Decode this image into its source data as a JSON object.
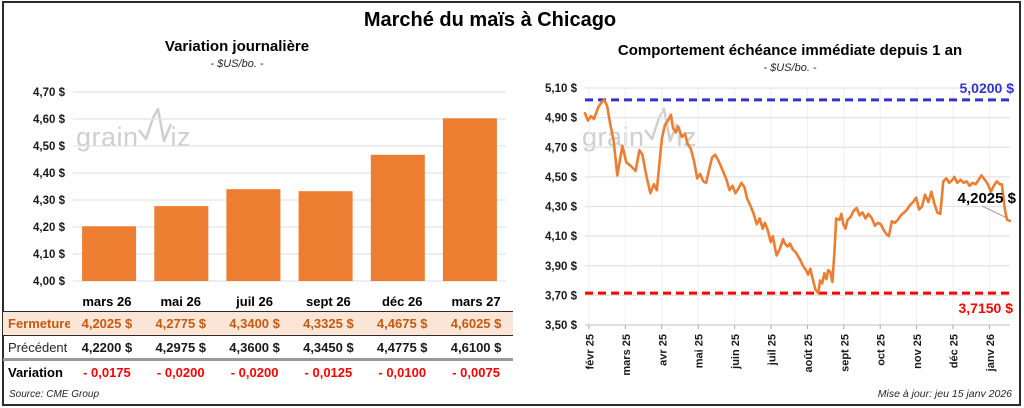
{
  "page": {
    "title": "Marché du maïs à Chicago",
    "source": "Source: CME Group",
    "updated": "Mise à jour: jeu 15 janv 2026",
    "watermark": {
      "part1": "grain",
      "part2": "iz"
    }
  },
  "colors": {
    "orange": "#ED7D31",
    "peach_row": "#FBE5D6",
    "fermeture_text": "#C55A11",
    "variation_red": "#FF0000",
    "max_blue": "#3333CC",
    "grid": "#E3E3E3"
  },
  "table": {
    "columns": [
      "mars 26",
      "mai 26",
      "juil 26",
      "sept 26",
      "déc 26",
      "mars 27"
    ],
    "rows": [
      {
        "key": "fermeture",
        "label": "Fermeture",
        "values": [
          "4,2025 $",
          "4,2775 $",
          "4,3400 $",
          "4,3325 $",
          "4,4675 $",
          "4,6025 $"
        ]
      },
      {
        "key": "precedent",
        "label": "Précédent",
        "values": [
          "4,2200 $",
          "4,2975 $",
          "4,3600 $",
          "4,3450 $",
          "4,4775 $",
          "4,6100 $"
        ]
      },
      {
        "key": "variation",
        "label": "Variation",
        "values": [
          "- 0,0175",
          "- 0,0200",
          "- 0,0200",
          "- 0,0125",
          "- 0,0100",
          "- 0,0075"
        ]
      }
    ]
  },
  "chart_data": [
    {
      "type": "bar",
      "title": "Variation journalière",
      "subtitle": "- $US/bo. -",
      "categories": [
        "mars 26",
        "mai 26",
        "juil 26",
        "sept 26",
        "déc 26",
        "mars 27"
      ],
      "values": [
        4.2025,
        4.2775,
        4.34,
        4.3325,
        4.4675,
        4.6025
      ],
      "ylim": [
        4.0,
        4.7
      ],
      "ytick_step": 0.1,
      "y_tick_labels": [
        "4,70 $",
        "4,60 $",
        "4,50 $",
        "4,40 $",
        "4,30 $",
        "4,20 $",
        "4,10 $",
        "4,00 $"
      ],
      "grid": true,
      "bar_color": "#ED7D31"
    },
    {
      "type": "line",
      "title": "Comportement échéance immédiate depuis 1 an",
      "subtitle": "- $US/bo. -",
      "x_ticks": [
        "févr 25",
        "mars 25",
        "avr 25",
        "mai 25",
        "juin 25",
        "juil 25",
        "août 25",
        "sept 25",
        "oct 25",
        "nov 25",
        "déc 25",
        "janv 26"
      ],
      "ylim": [
        3.5,
        5.1
      ],
      "ytick_step": 0.2,
      "y_tick_labels": [
        "5,10 $",
        "4,90 $",
        "4,70 $",
        "4,50 $",
        "4,30 $",
        "4,10 $",
        "3,90 $",
        "3,70 $",
        "3,50 $"
      ],
      "grid": true,
      "line_color": "#ED7D31",
      "max_line": {
        "value": 5.02,
        "label": "5,0200 $",
        "color": "#3333CC"
      },
      "min_line": {
        "value": 3.715,
        "label": "3,7150 $",
        "color": "#FF0000"
      },
      "last_value": 4.2025,
      "last_label": "4,2025 $",
      "points": [
        [
          0,
          4.93
        ],
        [
          0.007,
          4.88
        ],
        [
          0.014,
          4.91
        ],
        [
          0.021,
          4.89
        ],
        [
          0.031,
          4.97
        ],
        [
          0.038,
          5.0
        ],
        [
          0.045,
          5.02
        ],
        [
          0.052,
          4.98
        ],
        [
          0.059,
          4.86
        ],
        [
          0.067,
          4.75
        ],
        [
          0.076,
          4.51
        ],
        [
          0.088,
          4.71
        ],
        [
          0.097,
          4.6
        ],
        [
          0.109,
          4.57
        ],
        [
          0.119,
          4.54
        ],
        [
          0.128,
          4.68
        ],
        [
          0.135,
          4.65
        ],
        [
          0.145,
          4.5
        ],
        [
          0.154,
          4.39
        ],
        [
          0.162,
          4.45
        ],
        [
          0.169,
          4.41
        ],
        [
          0.181,
          4.76
        ],
        [
          0.188,
          4.85
        ],
        [
          0.195,
          4.88
        ],
        [
          0.202,
          4.92
        ],
        [
          0.207,
          4.83
        ],
        [
          0.214,
          4.8
        ],
        [
          0.219,
          4.84
        ],
        [
          0.228,
          4.77
        ],
        [
          0.235,
          4.79
        ],
        [
          0.242,
          4.72
        ],
        [
          0.249,
          4.69
        ],
        [
          0.257,
          4.6
        ],
        [
          0.264,
          4.49
        ],
        [
          0.271,
          4.52
        ],
        [
          0.278,
          4.47
        ],
        [
          0.285,
          4.46
        ],
        [
          0.292,
          4.55
        ],
        [
          0.299,
          4.63
        ],
        [
          0.306,
          4.65
        ],
        [
          0.314,
          4.61
        ],
        [
          0.323,
          4.55
        ],
        [
          0.333,
          4.48
        ],
        [
          0.34,
          4.41
        ],
        [
          0.347,
          4.44
        ],
        [
          0.354,
          4.39
        ],
        [
          0.361,
          4.42
        ],
        [
          0.368,
          4.46
        ],
        [
          0.375,
          4.43
        ],
        [
          0.382,
          4.35
        ],
        [
          0.39,
          4.3
        ],
        [
          0.397,
          4.25
        ],
        [
          0.404,
          4.18
        ],
        [
          0.411,
          4.22
        ],
        [
          0.418,
          4.15
        ],
        [
          0.423,
          4.19
        ],
        [
          0.43,
          4.14
        ],
        [
          0.437,
          4.06
        ],
        [
          0.442,
          4.1
        ],
        [
          0.447,
          4.02
        ],
        [
          0.451,
          3.97
        ],
        [
          0.458,
          4.01
        ],
        [
          0.466,
          4.08
        ],
        [
          0.47,
          4.05
        ],
        [
          0.477,
          4.03
        ],
        [
          0.482,
          4.05
        ],
        [
          0.489,
          4.01
        ],
        [
          0.496,
          3.99
        ],
        [
          0.506,
          3.94
        ],
        [
          0.513,
          3.9
        ],
        [
          0.52,
          3.87
        ],
        [
          0.525,
          3.84
        ],
        [
          0.53,
          3.88
        ],
        [
          0.534,
          3.83
        ],
        [
          0.542,
          3.74
        ],
        [
          0.549,
          3.715
        ],
        [
          0.553,
          3.8
        ],
        [
          0.558,
          3.78
        ],
        [
          0.563,
          3.85
        ],
        [
          0.568,
          3.81
        ],
        [
          0.572,
          3.87
        ],
        [
          0.577,
          3.86
        ],
        [
          0.582,
          3.79
        ],
        [
          0.587,
          4.0
        ],
        [
          0.591,
          4.22
        ],
        [
          0.599,
          4.21
        ],
        [
          0.603,
          4.25
        ],
        [
          0.608,
          4.18
        ],
        [
          0.613,
          4.15
        ],
        [
          0.618,
          4.21
        ],
        [
          0.625,
          4.23
        ],
        [
          0.632,
          4.27
        ],
        [
          0.639,
          4.29
        ],
        [
          0.646,
          4.24
        ],
        [
          0.653,
          4.26
        ],
        [
          0.66,
          4.22
        ],
        [
          0.667,
          4.25
        ],
        [
          0.675,
          4.22
        ],
        [
          0.682,
          4.17
        ],
        [
          0.689,
          4.19
        ],
        [
          0.696,
          4.18
        ],
        [
          0.703,
          4.14
        ],
        [
          0.71,
          4.11
        ],
        [
          0.715,
          4.1
        ],
        [
          0.722,
          4.2
        ],
        [
          0.729,
          4.19
        ],
        [
          0.736,
          4.21
        ],
        [
          0.743,
          4.24
        ],
        [
          0.751,
          4.26
        ],
        [
          0.758,
          4.28
        ],
        [
          0.765,
          4.31
        ],
        [
          0.772,
          4.33
        ],
        [
          0.779,
          4.36
        ],
        [
          0.786,
          4.28
        ],
        [
          0.793,
          4.3
        ],
        [
          0.8,
          4.38
        ],
        [
          0.808,
          4.33
        ],
        [
          0.815,
          4.4
        ],
        [
          0.822,
          4.32
        ],
        [
          0.829,
          4.26
        ],
        [
          0.836,
          4.25
        ],
        [
          0.843,
          4.47
        ],
        [
          0.85,
          4.49
        ],
        [
          0.857,
          4.46
        ],
        [
          0.865,
          4.48
        ],
        [
          0.869,
          4.5
        ],
        [
          0.876,
          4.46
        ],
        [
          0.884,
          4.48
        ],
        [
          0.891,
          4.46
        ],
        [
          0.898,
          4.47
        ],
        [
          0.905,
          4.44
        ],
        [
          0.912,
          4.46
        ],
        [
          0.919,
          4.45
        ],
        [
          0.926,
          4.48
        ],
        [
          0.933,
          4.51
        ],
        [
          0.941,
          4.48
        ],
        [
          0.948,
          4.45
        ],
        [
          0.955,
          4.4
        ],
        [
          0.962,
          4.44
        ],
        [
          0.969,
          4.47
        ],
        [
          0.976,
          4.45
        ],
        [
          0.981,
          4.45
        ],
        [
          0.988,
          4.28
        ],
        [
          0.993,
          4.21
        ],
        [
          1,
          4.2025
        ]
      ]
    }
  ]
}
